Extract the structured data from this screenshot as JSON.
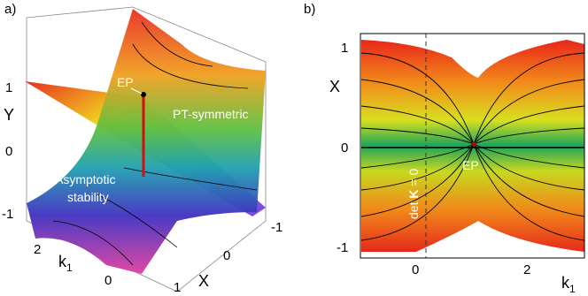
{
  "panel_a": {
    "label": "a)",
    "y_axis": {
      "title": "Y",
      "ticks": [
        "1",
        "0",
        "-1"
      ]
    },
    "k_axis": {
      "title": "k",
      "subscript": "1",
      "ticks": [
        "2",
        "0"
      ]
    },
    "x_axis": {
      "title": "X",
      "ticks": [
        "-1",
        "0",
        "1"
      ]
    },
    "annotations": {
      "ep": "EP",
      "pt": "PT-symmetric",
      "stability": [
        "Asymptotic",
        "stability"
      ]
    }
  },
  "panel_b": {
    "label": "b)",
    "y_axis": {
      "title": "X",
      "ticks": [
        "1",
        "0",
        "-1"
      ]
    },
    "x_axis": {
      "title": "k",
      "subscript": "1",
      "ticks": [
        "0",
        "2"
      ]
    },
    "annotations": {
      "ep": "EP",
      "det": [
        "det ",
        "K",
        " = 0"
      ]
    }
  }
}
